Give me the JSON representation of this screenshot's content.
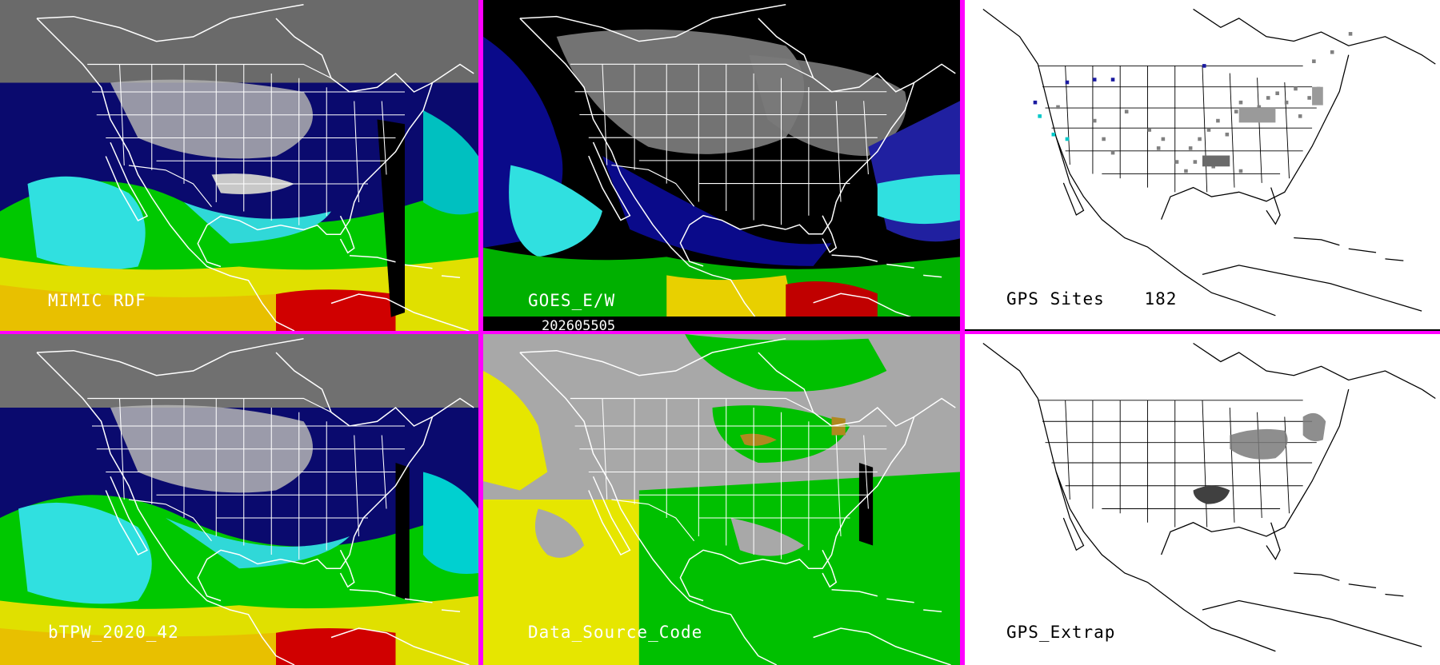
{
  "panels": {
    "mimic": {
      "label": "MIMIC RDF"
    },
    "goes": {
      "label": "GOES_E/W"
    },
    "gps_sites": {
      "label": "GPS Sites",
      "count": "182"
    },
    "btpw": {
      "label": "bTPW_2020_42"
    },
    "source": {
      "label": "Data_Source_Code"
    },
    "gps_extrap": {
      "label": "GPS_Extrap"
    }
  },
  "timestamp": "202605505",
  "colors": {
    "divider": "#ff00ff",
    "moisture_dry": "#000070",
    "moisture_mid": "#00e8e8",
    "moisture_wet": "#00c800",
    "moisture_high": "#e8e800",
    "moisture_max": "#d00000",
    "source_gray": "#a8a8a8",
    "source_yellow": "#e6e600",
    "source_green": "#00c000"
  }
}
